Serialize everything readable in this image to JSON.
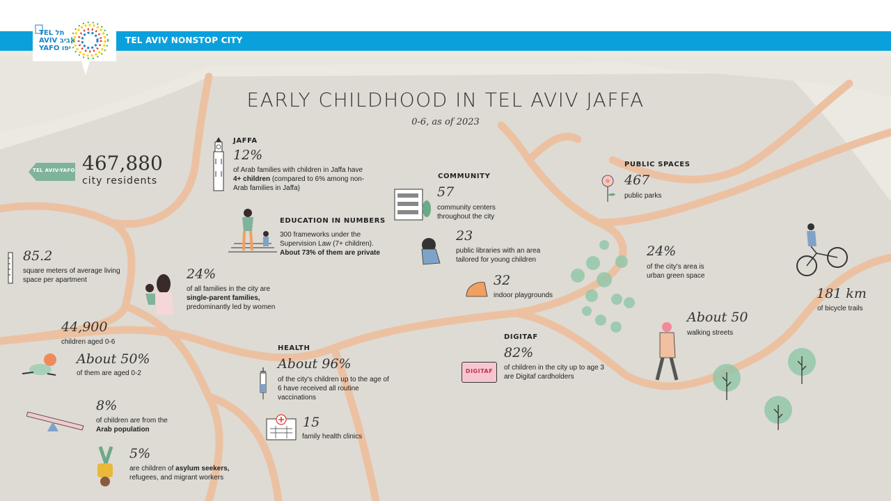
{
  "header": {
    "bar_text": "TEL AVIV NONSTOP CITY",
    "logo_text": [
      "TEL  תל",
      "AVIV אביב",
      "YAFO יפו"
    ],
    "blue": "#0aa0dc"
  },
  "title": "EARLY CHILDHOOD IN TEL AVIV JAFFA",
  "subtitle": "0-6,  as of 2023",
  "residents": {
    "sign": "TEL AVIV-YAFO",
    "value": "467,880",
    "label": "city residents"
  },
  "living": {
    "value": "85.2",
    "label": "square meters of average living space per apartment"
  },
  "children": {
    "value": "44,900",
    "label": "children aged 0-6"
  },
  "aged02": {
    "value": "About 50%",
    "label": "of them are aged 0-2"
  },
  "arab": {
    "value": "8%",
    "label_pre": "of children are from the ",
    "label_bold": "Arab population"
  },
  "asylum": {
    "value": "5%",
    "label_pre": "are children of ",
    "label_bold": "asylum seekers,",
    "label_post": " refugees, and migrant workers"
  },
  "single": {
    "value": "24%",
    "label_pre": "of all families in the city are ",
    "label_bold": "single-parent families,",
    "label_post": " predominantly led by women"
  },
  "jaffa": {
    "heading": "JAFFA",
    "value": "12%",
    "label_pre": "of Arab families with children in Jaffa have ",
    "label_bold": "4+ children",
    "label_post": " (compared to 6% among non-Arab families in Jaffa)"
  },
  "education": {
    "heading": "EDUCATION IN NUMBERS",
    "label_pre": "300 frameworks under the Supervision Law (7+ children). ",
    "label_bold": "About 73% of them are private"
  },
  "health": {
    "heading": "HEALTH",
    "value": "About 96%",
    "label": "of the city's children up to the age of 6 have received all routine vaccinations"
  },
  "clinics": {
    "value": "15",
    "label": "family health clinics"
  },
  "community": {
    "heading": "COMMUNITY",
    "value": "57",
    "label": "community centers throughout the city"
  },
  "libraries": {
    "value": "23",
    "label": "public libraries with an area tailored for young children"
  },
  "playgrounds": {
    "value": "32",
    "label": "indoor playgrounds"
  },
  "digitaf": {
    "heading": "DIGITAF",
    "value": "82%",
    "label": "of children in the city up to age 3 are Digitaf cardholders",
    "card": "DIGITAF"
  },
  "public_spaces": {
    "heading": "PUBLIC SPACES",
    "value": "467",
    "label": "public parks"
  },
  "green": {
    "value": "24%",
    "label": "of the city's area is urban green space"
  },
  "walking": {
    "value": "About 50",
    "label": "walking streets"
  },
  "bicycle": {
    "value": "181 km",
    "label": "of bicycle trails"
  },
  "colors": {
    "road": "#eec0a0",
    "land": "#d9d6cf",
    "background": "#ece9e2",
    "green": "#6aaa86",
    "orange": "#f0a060"
  }
}
